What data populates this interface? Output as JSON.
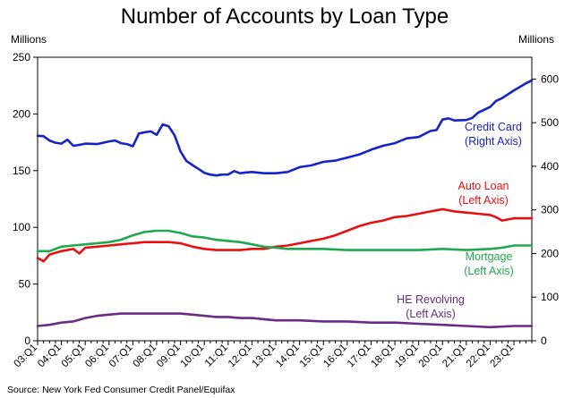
{
  "chart_data": {
    "type": "line",
    "title": "Number of Accounts by Loan Type",
    "left_axis": {
      "unit_label": "Millions",
      "ylim": [
        0,
        250
      ],
      "ticks": [
        0,
        50,
        100,
        150,
        200,
        250
      ]
    },
    "right_axis": {
      "unit_label": "Millions",
      "ylim": [
        0,
        650
      ],
      "ticks": [
        0,
        100,
        200,
        300,
        400,
        500,
        600
      ]
    },
    "x_range": [
      2003.0,
      2023.75
    ],
    "x_tick_labels": [
      "03:Q1",
      "04:Q1",
      "05:Q1",
      "06:Q1",
      "07:Q1",
      "08:Q1",
      "09:Q1",
      "10:Q1",
      "11:Q1",
      "12:Q1",
      "13:Q1",
      "14:Q1",
      "15:Q1",
      "16:Q1",
      "17:Q1",
      "18:Q1",
      "19:Q1",
      "20:Q1",
      "21:Q1",
      "22:Q1",
      "23:Q1"
    ],
    "grid": false,
    "source": "Source: New York Fed Consumer Credit Panel/Equifax",
    "series": [
      {
        "name": "Credit Card",
        "label_lines": [
          "Credit Card",
          "(Right Axis)"
        ],
        "axis": "right",
        "color": "#1424c8",
        "x": [
          2003.0,
          2003.25,
          2003.5,
          2003.75,
          2004.0,
          2004.25,
          2004.5,
          2004.75,
          2005.0,
          2005.5,
          2006.0,
          2006.25,
          2006.5,
          2006.75,
          2007.0,
          2007.25,
          2007.5,
          2007.75,
          2008.0,
          2008.25,
          2008.5,
          2008.75,
          2009.0,
          2009.25,
          2009.5,
          2009.75,
          2010.0,
          2010.25,
          2010.5,
          2010.75,
          2011.0,
          2011.25,
          2011.5,
          2011.75,
          2012.0,
          2012.5,
          2013.0,
          2013.5,
          2014.0,
          2014.5,
          2015.0,
          2015.5,
          2016.0,
          2016.5,
          2017.0,
          2017.5,
          2018.0,
          2018.5,
          2019.0,
          2019.5,
          2019.75,
          2020.0,
          2020.25,
          2020.5,
          2021.0,
          2021.25,
          2021.5,
          2022.0,
          2022.25,
          2022.5,
          2023.0,
          2023.5,
          2023.75
        ],
        "y": [
          470,
          469,
          459,
          454,
          452,
          461,
          447,
          449,
          452,
          451,
          457,
          459,
          453,
          451,
          446,
          475,
          478,
          480,
          472,
          496,
          492,
          471,
          434,
          412,
          403,
          394,
          385,
          381,
          379,
          381,
          381,
          389,
          384,
          386,
          387,
          384,
          384,
          387,
          398,
          402,
          410,
          413,
          420,
          427,
          438,
          447,
          453,
          464,
          467,
          481,
          483,
          507,
          510,
          505,
          506,
          511,
          523,
          536,
          550,
          556,
          574,
          590,
          597
        ]
      },
      {
        "name": "Auto Loan",
        "label_lines": [
          "Auto Loan",
          "(Left Axis)"
        ],
        "axis": "left",
        "color": "#e8100f",
        "x": [
          2003.0,
          2003.25,
          2003.5,
          2004.0,
          2004.5,
          2004.75,
          2005.0,
          2005.5,
          2006.0,
          2006.5,
          2007.0,
          2007.5,
          2008.0,
          2008.5,
          2009.0,
          2009.5,
          2010.0,
          2010.5,
          2011.0,
          2011.5,
          2012.0,
          2012.5,
          2013.0,
          2013.5,
          2014.0,
          2014.5,
          2015.0,
          2015.5,
          2016.0,
          2016.5,
          2017.0,
          2017.5,
          2018.0,
          2018.5,
          2019.0,
          2019.5,
          2019.75,
          2020.0,
          2020.5,
          2021.0,
          2021.5,
          2022.0,
          2022.25,
          2022.5,
          2023.0,
          2023.5,
          2023.75
        ],
        "y": [
          73,
          70,
          76,
          79,
          81,
          77,
          82,
          83,
          84,
          85,
          86,
          87,
          87,
          87,
          86,
          83,
          81,
          80,
          80,
          80,
          81,
          81,
          83,
          84,
          86,
          88,
          90,
          93,
          97,
          101,
          104,
          106,
          109,
          110,
          112,
          114,
          115,
          116,
          114,
          113,
          112,
          111,
          109,
          106,
          108,
          108,
          108
        ]
      },
      {
        "name": "Mortgage",
        "label_lines": [
          "Mortgage",
          "(Left Axis)"
        ],
        "axis": "left",
        "color": "#1fa94f",
        "x": [
          2003.0,
          2003.5,
          2004.0,
          2004.5,
          2005.0,
          2005.5,
          2006.0,
          2006.5,
          2007.0,
          2007.5,
          2008.0,
          2008.5,
          2009.0,
          2009.5,
          2010.0,
          2010.5,
          2011.0,
          2011.5,
          2012.0,
          2012.5,
          2013.0,
          2013.5,
          2014.0,
          2015.0,
          2016.0,
          2017.0,
          2018.0,
          2019.0,
          2020.0,
          2021.0,
          2022.0,
          2022.5,
          2023.0,
          2023.75
        ],
        "y": [
          79,
          79,
          83,
          84,
          85,
          86,
          87,
          89,
          93,
          96,
          97,
          97,
          95,
          92,
          91,
          89,
          88,
          87,
          85,
          83,
          82,
          81,
          81,
          81,
          80,
          80,
          80,
          80,
          81,
          80,
          81,
          82,
          84,
          84
        ]
      },
      {
        "name": "HE Revolving",
        "label_lines": [
          "HE Revolving",
          "(Left Axis)"
        ],
        "axis": "left",
        "color": "#6a2b87",
        "x": [
          2003.0,
          2003.5,
          2004.0,
          2004.5,
          2005.0,
          2005.5,
          2006.0,
          2006.5,
          2007.0,
          2008.0,
          2009.0,
          2009.5,
          2010.0,
          2010.5,
          2011.0,
          2011.5,
          2012.0,
          2012.5,
          2013.0,
          2014.0,
          2015.0,
          2016.0,
          2017.0,
          2018.0,
          2019.0,
          2020.0,
          2021.0,
          2022.0,
          2023.0,
          2023.75
        ],
        "y": [
          13,
          14,
          16,
          17,
          20,
          22,
          23,
          24,
          24,
          24,
          24,
          23,
          22,
          21,
          21,
          20,
          20,
          19,
          18,
          18,
          17,
          17,
          16,
          16,
          15,
          14,
          13,
          12,
          13,
          13
        ]
      }
    ]
  }
}
